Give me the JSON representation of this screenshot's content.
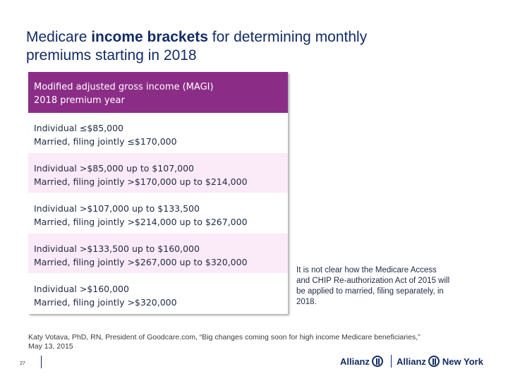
{
  "title": {
    "part1": "Medicare ",
    "bold": "income brackets",
    "part2": " for determining monthly premiums starting in 2018"
  },
  "table": {
    "header": {
      "line1": "Modified adjusted gross income (MAGI)",
      "line2": "2018 premium year"
    },
    "rows": [
      {
        "individual": "Individual ≤$85,000",
        "married": "Married, filing jointly ≤$170,000"
      },
      {
        "individual": "Individual >$85,000 up to $107,000",
        "married": "Married, filing jointly >$170,000 up to $214,000"
      },
      {
        "individual": "Individual >$107,000 up to $133,500",
        "married": "Married, filing jointly >$214,000 up to $267,000"
      },
      {
        "individual": "Individual >$133,500 up to $160,000",
        "married": "Married, filing jointly >$267,000 up to $320,000"
      },
      {
        "individual": "Individual >$160,000",
        "married": "Married, filing jointly >$320,000"
      }
    ]
  },
  "note": "It is not clear how the Medicare Access and CHIP Re-authorization Act of 2015 will be applied to married, filing separately, in 2018.",
  "source": "Katy Votava, PhD, RN, President of Goodcare.com, “Big changes coming soon for high income Medicare beneficiaries,” May 13, 2015",
  "page_number": "27",
  "footer": {
    "logo1": "Allianz",
    "logo2_brand": "Allianz",
    "logo2_suffix": "New York"
  },
  "colors": {
    "header_bg": "#8b2d87",
    "alt_row_bg": "#fbeaf7",
    "brand_navy": "#122c66"
  }
}
